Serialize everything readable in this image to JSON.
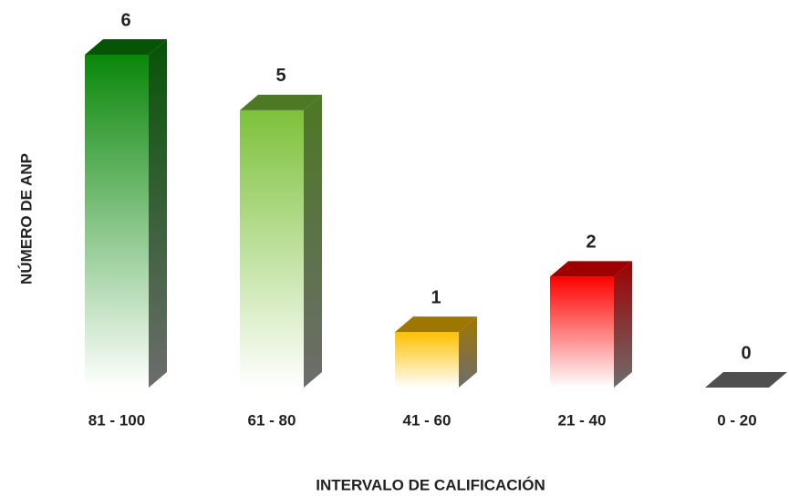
{
  "chart_data": {
    "type": "bar3d",
    "x_label": "INTERVALO DE CALIFICACIÓN",
    "y_label": "NÚMERO DE ANP",
    "categories": [
      "81 - 100",
      "61 - 80",
      "41 - 60",
      "21 - 40",
      "0 - 20"
    ],
    "values": [
      6,
      5,
      1,
      2,
      0
    ],
    "colors": [
      "#0a870a",
      "#7cc13a",
      "#ffc000",
      "#ff0000",
      "#808080"
    ],
    "ylim": [
      0,
      6
    ]
  }
}
